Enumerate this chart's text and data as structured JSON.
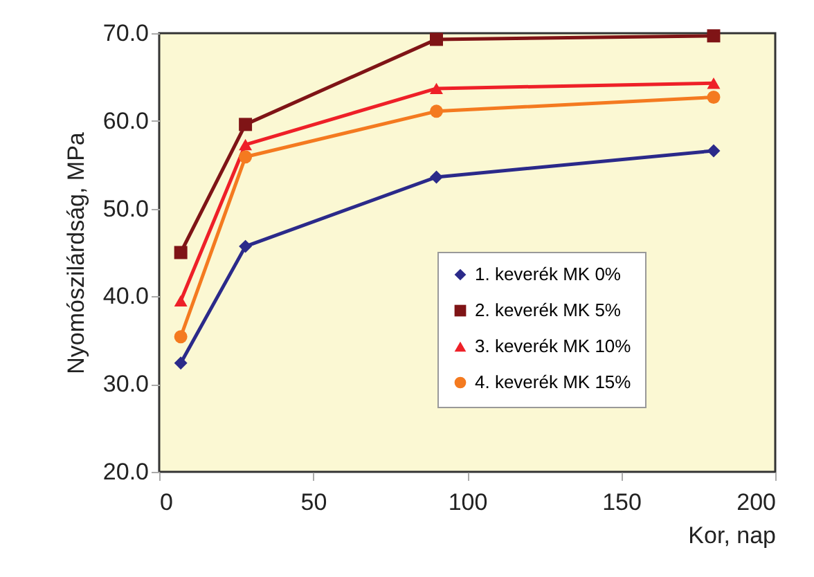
{
  "chart_data": {
    "type": "line",
    "xlabel": "Kor, nap",
    "ylabel": "Nyomószilárdság, MPa",
    "x": [
      7,
      28,
      90,
      180
    ],
    "series": [
      {
        "name": "1. keverék MK 0%",
        "color": "#2b2a8a",
        "marker": "diamond",
        "values": [
          32.4,
          45.7,
          53.6,
          56.6
        ]
      },
      {
        "name": "2. keverék MK 5%",
        "color": "#7f1416",
        "marker": "square",
        "values": [
          45.0,
          59.6,
          69.3,
          69.7
        ]
      },
      {
        "name": "3. keverék MK 10%",
        "color": "#ee2028",
        "marker": "triangle",
        "values": [
          39.5,
          57.3,
          63.7,
          64.3
        ]
      },
      {
        "name": "4. keverék MK 15%",
        "color": "#f47a20",
        "marker": "circle",
        "values": [
          35.4,
          55.9,
          61.1,
          62.7
        ]
      }
    ],
    "xlim": [
      0,
      200
    ],
    "xticks": [
      0,
      50,
      100,
      150,
      200
    ],
    "ylim": [
      20,
      70
    ],
    "yticks": [
      {
        "value": 20,
        "label": "20.0"
      },
      {
        "value": 30,
        "label": "30.0"
      },
      {
        "value": 40,
        "label": "40.0"
      },
      {
        "value": 50,
        "label": "50.0"
      },
      {
        "value": 60,
        "label": "60.0"
      },
      {
        "value": 70,
        "label": "70.0"
      }
    ],
    "grid": false,
    "legend": "bottom right",
    "line_style": "solid"
  }
}
